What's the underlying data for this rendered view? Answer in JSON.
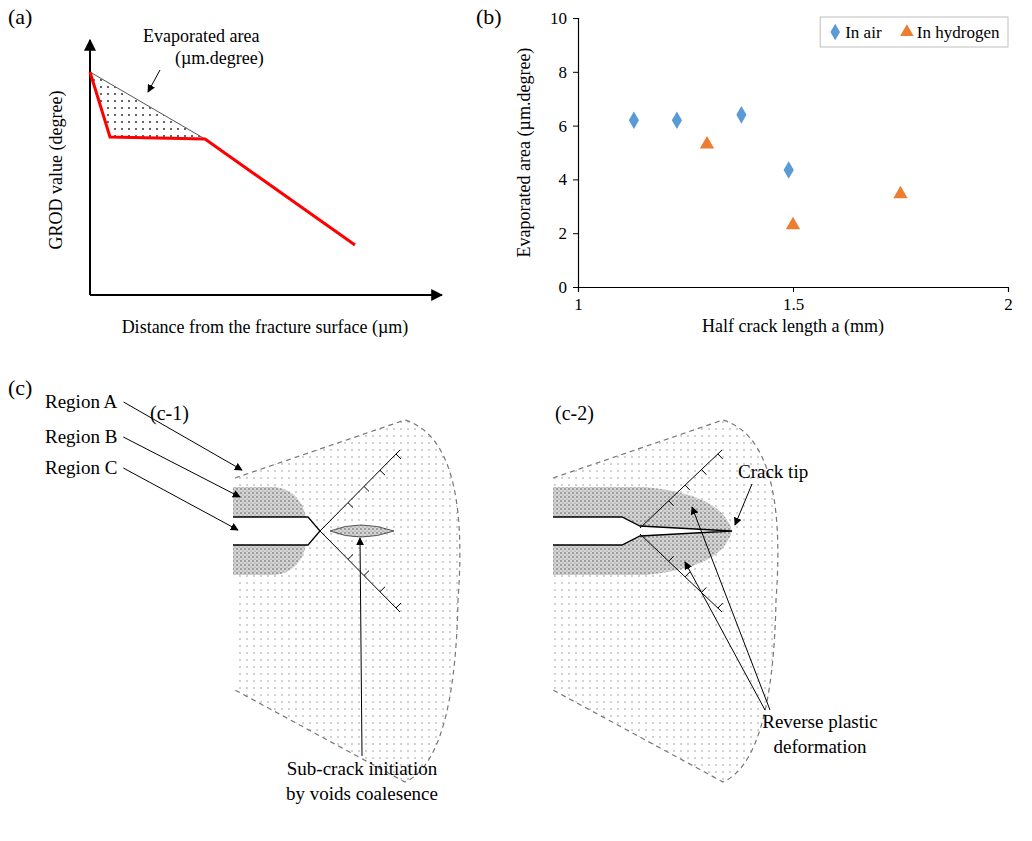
{
  "panel_a": {
    "label": "(a)",
    "y_axis_label": "GROD value (degree)",
    "x_axis_label": "Distance from the fracture surface (µm)",
    "annotation": [
      "Evaporated area",
      "(µm.degree)"
    ]
  },
  "panel_b_label": "(b)",
  "chart_data": {
    "type": "scatter",
    "x_label": "Half crack length a (mm)",
    "y_label": "Evaporated area (µm.degree)",
    "xlim": [
      1,
      2
    ],
    "xticks": [
      1,
      1.5,
      2
    ],
    "ylim": [
      0,
      10
    ],
    "yticks": [
      0,
      2,
      4,
      6,
      8,
      10
    ],
    "legend": "top-right",
    "series": [
      {
        "name": "In air",
        "color": "#5b9bd5",
        "marker": "diamond",
        "x": [
          1.13,
          1.23,
          1.38,
          1.49
        ],
        "values": [
          6.2,
          6.2,
          6.4,
          4.35
        ]
      },
      {
        "name": "In hydrogen",
        "color": "#ed7d31",
        "marker": "triangle",
        "x": [
          1.3,
          1.5,
          1.75
        ],
        "values": [
          5.3,
          2.3,
          3.45
        ]
      }
    ]
  },
  "panel_c": {
    "label": "(c)",
    "sub_panels": [
      {
        "label": "(c-1)",
        "regions": [
          "Region A",
          "Region B",
          "Region C"
        ],
        "annotation": [
          "Sub-crack initiation",
          "by voids coalesence"
        ]
      },
      {
        "label": "(c-2)",
        "tip_annotation": "Crack tip",
        "annotation": [
          "Reverse plastic",
          "deformation"
        ]
      }
    ]
  }
}
